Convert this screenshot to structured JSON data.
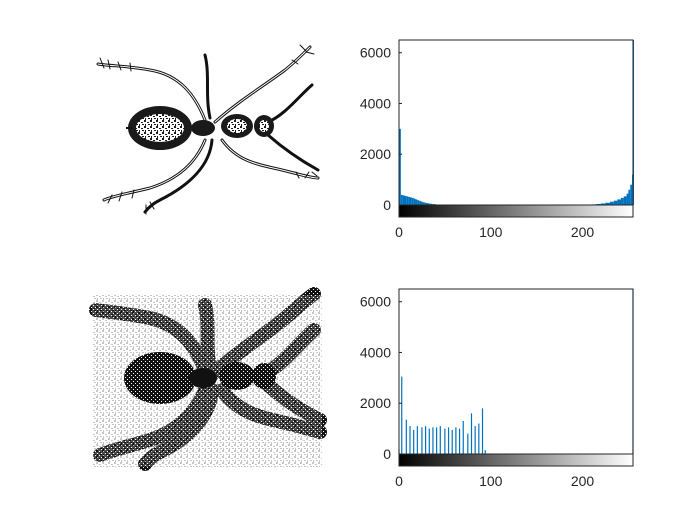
{
  "figure": {
    "background": "#ffffff",
    "axes_color": "#262626",
    "bar_color": "#0072bd"
  },
  "chart_data": [
    {
      "type": "image",
      "subject": "ant-line-drawing",
      "variant": "original"
    },
    {
      "type": "bar",
      "title": "",
      "xlabel": "",
      "ylabel": "",
      "xlim": [
        0,
        255
      ],
      "ylim": [
        0,
        6500
      ],
      "xticks": [
        "0",
        "100",
        "200"
      ],
      "xtick_values": [
        0,
        100,
        200
      ],
      "yticks": [
        "0",
        "2000",
        "4000",
        "6000"
      ],
      "ytick_values": [
        0,
        2000,
        4000,
        6000
      ],
      "grayscale_colorbar": true,
      "histogram_shape": "dense",
      "series": [
        {
          "x": [
            0,
            2,
            4,
            6,
            8,
            10,
            12,
            14,
            16,
            18,
            20,
            22,
            24,
            26,
            28,
            30,
            33,
            36,
            40,
            45,
            50,
            200,
            205,
            210,
            215,
            220,
            225,
            230,
            234,
            238,
            242,
            245,
            248,
            250,
            252,
            254,
            255
          ],
          "values": [
            3000,
            400,
            380,
            360,
            340,
            320,
            300,
            280,
            250,
            220,
            190,
            160,
            130,
            110,
            90,
            70,
            50,
            35,
            20,
            10,
            5,
            5,
            12,
            25,
            40,
            60,
            90,
            130,
            170,
            220,
            280,
            340,
            450,
            600,
            800,
            1200,
            6600
          ]
        }
      ]
    },
    {
      "type": "image",
      "subject": "ant-line-drawing",
      "variant": "quantized"
    },
    {
      "type": "bar",
      "title": "",
      "xlabel": "",
      "ylabel": "",
      "xlim": [
        0,
        255
      ],
      "ylim": [
        0,
        6500
      ],
      "xticks": [
        "0",
        "100",
        "200"
      ],
      "xtick_values": [
        0,
        100,
        200
      ],
      "yticks": [
        "0",
        "2000",
        "4000",
        "6000"
      ],
      "ytick_values": [
        0,
        2000,
        4000,
        6000
      ],
      "grayscale_colorbar": true,
      "histogram_shape": "sparse",
      "series": [
        {
          "x": [
            0,
            3,
            8,
            12,
            16,
            20,
            25,
            29,
            33,
            37,
            41,
            45,
            50,
            54,
            58,
            62,
            66,
            70,
            75,
            79,
            83,
            87,
            91,
            94,
            255
          ],
          "values": [
            200,
            3050,
            1350,
            1100,
            950,
            1100,
            1050,
            1100,
            1000,
            1050,
            1050,
            1100,
            1000,
            1050,
            950,
            1050,
            1000,
            1300,
            800,
            1600,
            1100,
            1200,
            1800,
            150,
            6600
          ]
        }
      ]
    }
  ]
}
